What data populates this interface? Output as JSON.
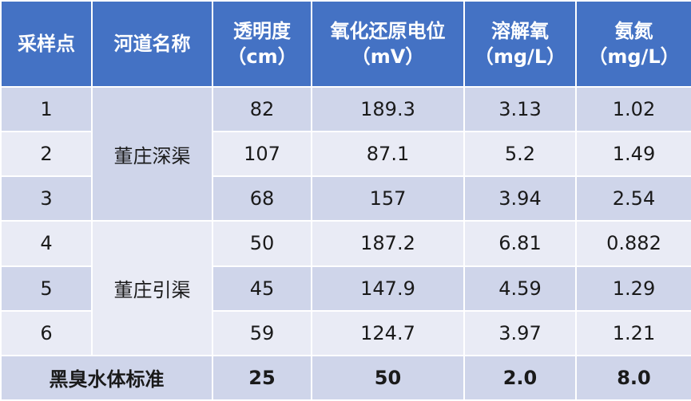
{
  "table": {
    "header": [
      "采样点",
      "河道名称",
      "透明度（cm）",
      "氧化还原电位（mV）",
      "溶解氧（mg/L）",
      "氨氮（mg/L）"
    ],
    "sections": [
      {
        "channel": "董庄深渠",
        "rows": [
          [
            "1",
            "82",
            "189.3",
            "3.13",
            "1.02"
          ],
          [
            "2",
            "107",
            "87.1",
            "5.2",
            "1.49"
          ],
          [
            "3",
            "68",
            "157",
            "3.94",
            "2.54"
          ]
        ]
      },
      {
        "channel": "董庄引渠",
        "rows": [
          [
            "4",
            "50",
            "187.2",
            "6.81",
            "0.882"
          ],
          [
            "5",
            "45",
            "147.9",
            "4.59",
            "1.29"
          ],
          [
            "6",
            "59",
            "124.7",
            "3.97",
            "1.21"
          ]
        ]
      }
    ],
    "standard": {
      "label": "黑臭水体标准",
      "values": [
        "25",
        "50",
        "2.0",
        "8.0"
      ]
    }
  }
}
